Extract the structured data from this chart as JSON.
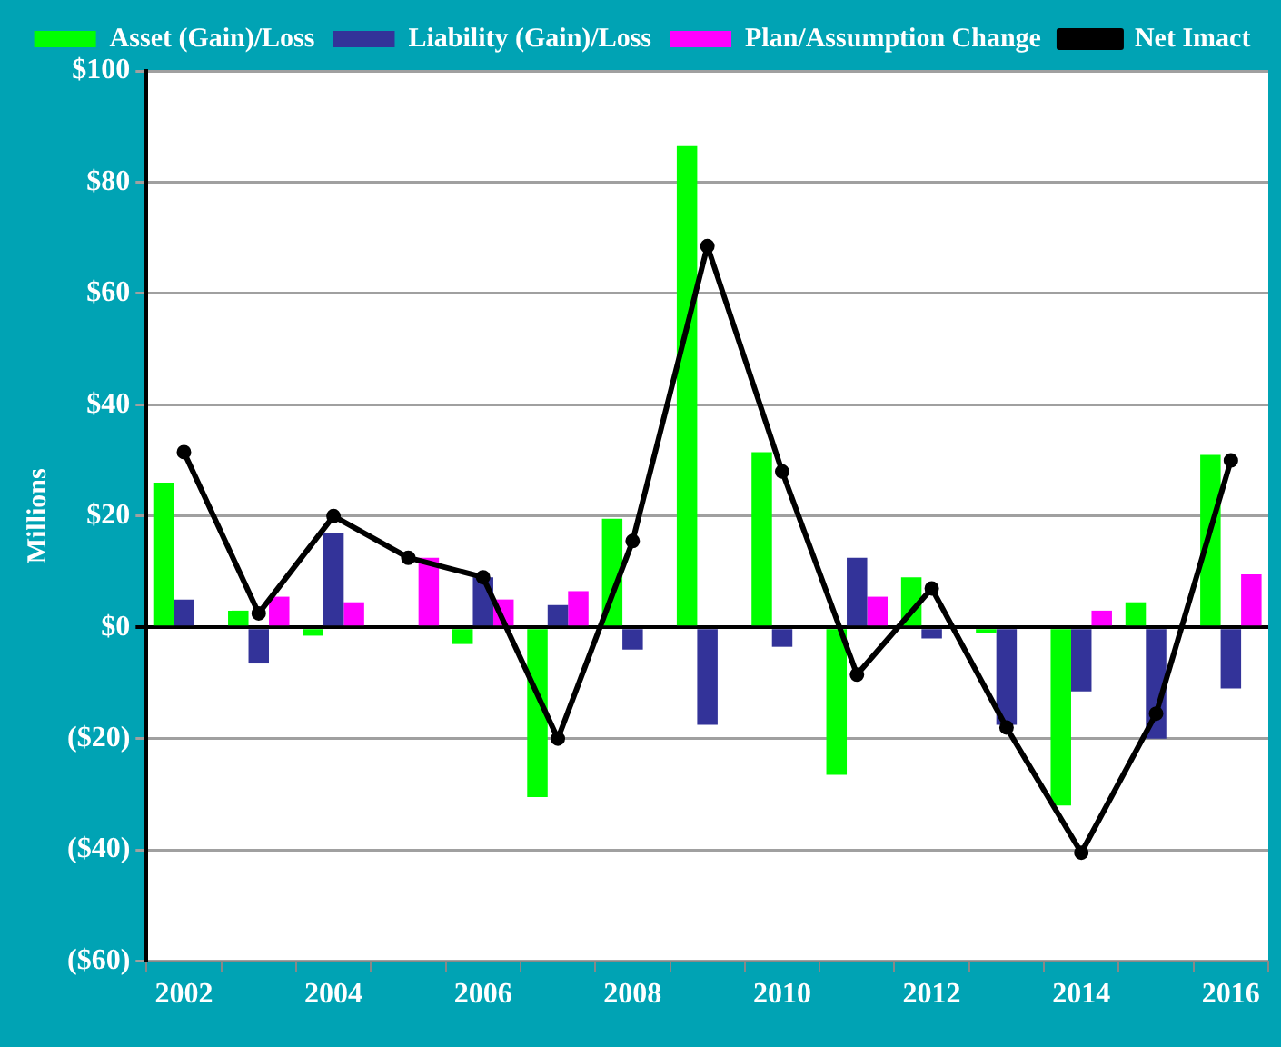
{
  "chart_data": {
    "type": "bar",
    "ylabel": "Millions",
    "categories": [
      "2002",
      null,
      "2004",
      null,
      "2006",
      null,
      "2008",
      null,
      "2010",
      null,
      "2012",
      null,
      "2014",
      null,
      "2016"
    ],
    "series": [
      {
        "name": "Asset (Gain)/Loss",
        "color": "#00ff00",
        "values": [
          26,
          3,
          -1.5,
          0,
          -3,
          -30.5,
          19.5,
          86.5,
          31.5,
          -26.5,
          9,
          -1,
          -32,
          4.5,
          31
        ]
      },
      {
        "name": "Liability (Gain)/Loss",
        "color": "#333399",
        "values": [
          5,
          -6.5,
          17,
          0,
          9,
          4,
          -4,
          -17.5,
          -3.5,
          12.5,
          -2,
          -17.5,
          -11.5,
          -20,
          -11
        ]
      },
      {
        "name": "Plan/Assumption Change",
        "color": "#ff00ff",
        "values": [
          0,
          5.5,
          4.5,
          12.5,
          5,
          6.5,
          0,
          0,
          0,
          5.5,
          0,
          0,
          3,
          0,
          9.5
        ]
      },
      {
        "name": "Net Imact",
        "type": "line",
        "color": "#000000",
        "values": [
          31.5,
          2.5,
          20,
          12.5,
          9,
          -20,
          15.5,
          68.5,
          28,
          -8.5,
          7,
          -18,
          -40.5,
          -15.5,
          30
        ]
      }
    ],
    "ylim": [
      -60,
      100
    ],
    "yticks": [
      {
        "value": -60,
        "label": "($60)"
      },
      {
        "value": -40,
        "label": "($40)"
      },
      {
        "value": -20,
        "label": "($20)"
      },
      {
        "value": 0,
        "label": "$0"
      },
      {
        "value": 20,
        "label": "$20"
      },
      {
        "value": 40,
        "label": "$40"
      },
      {
        "value": 60,
        "label": "$60"
      },
      {
        "value": 80,
        "label": "$80"
      },
      {
        "value": 100,
        "label": "$100"
      }
    ],
    "grid": "y",
    "legend": "top",
    "marker": "circle",
    "line_style": "solid"
  }
}
